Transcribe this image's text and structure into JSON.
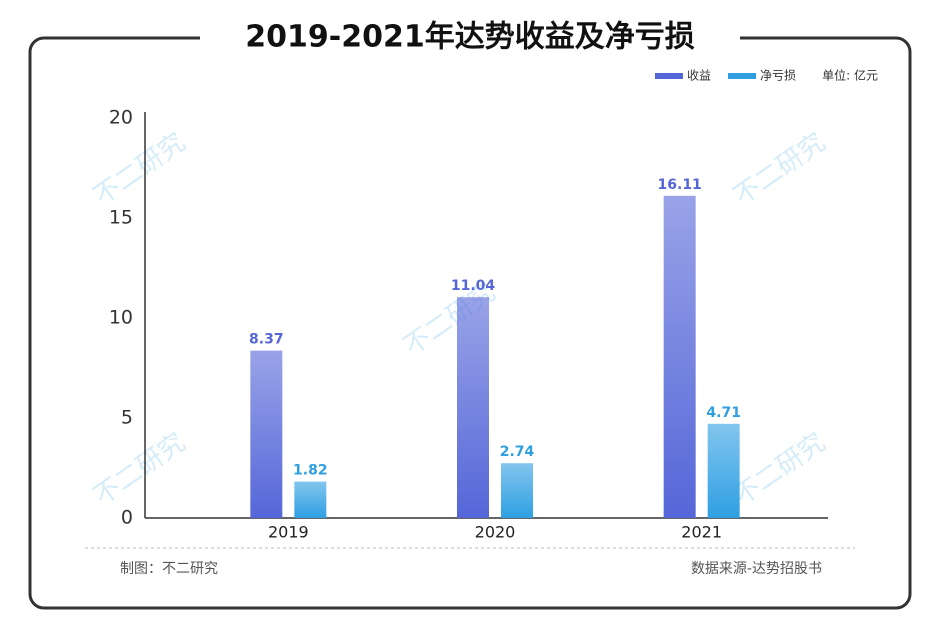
{
  "chart_data": {
    "type": "bar",
    "title": "2019-2021年达势收益及净亏损",
    "unit": "单位: 亿元",
    "categories": [
      "2019",
      "2020",
      "2021"
    ],
    "series": [
      {
        "name": "收益",
        "color": "#5566d8",
        "values": [
          8.37,
          11.04,
          16.11
        ]
      },
      {
        "name": "净亏损",
        "color": "#2f9fe2",
        "values": [
          1.82,
          2.74,
          4.71
        ]
      }
    ],
    "ylim": [
      0,
      20
    ],
    "yticks": [
      0,
      5,
      10,
      15,
      20
    ],
    "grid": false,
    "legend": "top-right",
    "credit": "制图：不二研究",
    "source": "数据来源-达势招股书",
    "watermark": "不二研究"
  }
}
